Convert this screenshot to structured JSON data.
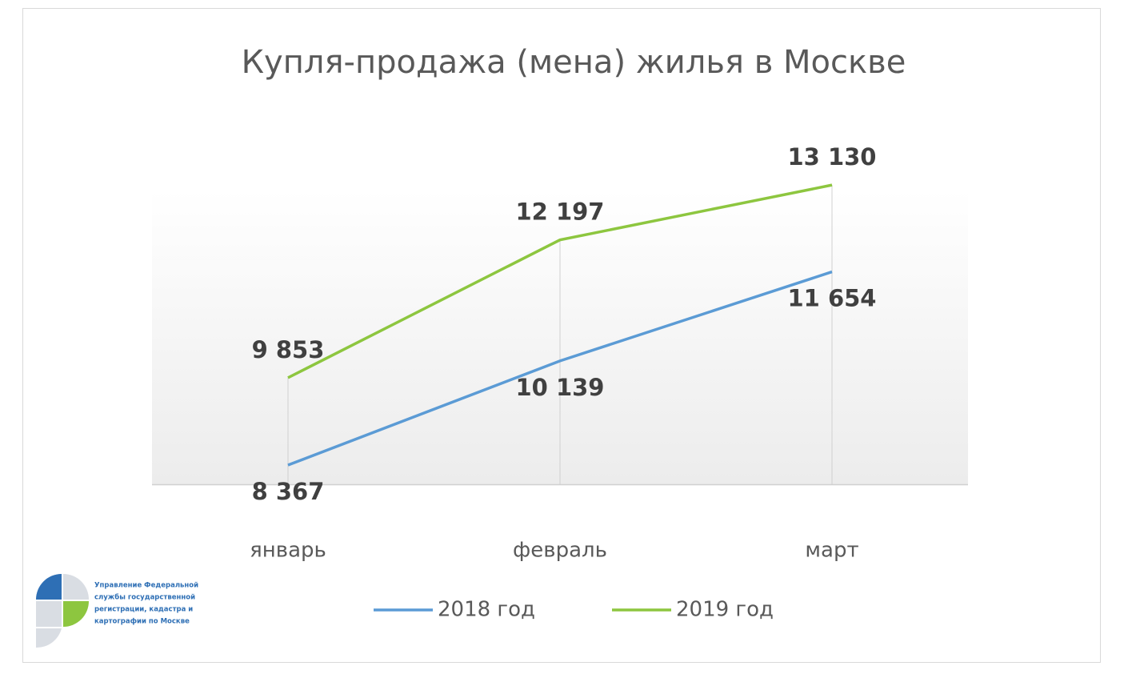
{
  "chart_data": {
    "type": "line",
    "title": "Купля-продажа (мена) жилья в Москве",
    "categories": [
      "январь",
      "февраль",
      "март"
    ],
    "series": [
      {
        "name": "2018 год",
        "color": "#5b9bd5",
        "values": [
          8367,
          10139,
          11654
        ],
        "value_labels": [
          "8 367",
          "10 139",
          "11 654"
        ]
      },
      {
        "name": "2019 год",
        "color": "#8dc63f",
        "values": [
          9853,
          12197,
          13130
        ],
        "value_labels": [
          "9 853",
          "12 197",
          "13 130"
        ]
      }
    ],
    "ylim": [
      8000,
      13200
    ]
  },
  "logo": {
    "lines": [
      "Управление Федеральной",
      "службы государственной",
      "регистрации, кадастра и",
      "картографии по Москве"
    ]
  }
}
